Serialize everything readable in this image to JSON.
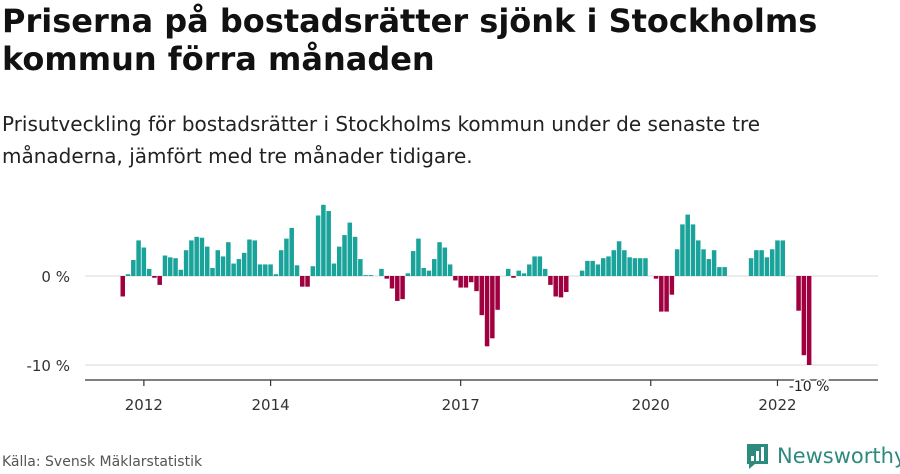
{
  "title": "Priserna på bostadsrätter sjönk i Stockholms kommun förra månaden",
  "subtitle": "Prisutveckling för bostadsrätter i Stockholms kommun under de senaste tre månaderna, jämfört med tre månader tidigare.",
  "source": "Källa: Svensk Mäklarstatistik",
  "brand": "Newsworthy",
  "colors": {
    "positive": "#1aa39a",
    "negative": "#a0003f",
    "brand": "#2d8a7e"
  },
  "chart_data": {
    "type": "bar",
    "start_month": "2011-09",
    "ylim": [
      -10.5,
      9
    ],
    "yticks": [
      0,
      -10
    ],
    "ytick_labels": [
      "0 %",
      "-10 %"
    ],
    "x_ticks": [
      "2012",
      "2014",
      "2017",
      "2020",
      "2022"
    ],
    "last_label": "-10 %",
    "values": [
      -2.3,
      0.2,
      1.8,
      4.0,
      3.2,
      0.8,
      -0.2,
      -1.0,
      2.3,
      2.1,
      2.0,
      0.7,
      2.9,
      4.0,
      4.4,
      4.3,
      3.3,
      0.9,
      2.9,
      2.2,
      3.8,
      1.4,
      1.9,
      2.6,
      4.1,
      4.0,
      1.3,
      1.3,
      1.3,
      0.2,
      2.9,
      4.2,
      5.4,
      1.2,
      -1.2,
      -1.2,
      1.1,
      6.8,
      8.0,
      7.3,
      1.4,
      3.3,
      4.6,
      6.0,
      4.4,
      1.9,
      0.1,
      0.1,
      0,
      0.8,
      -0.3,
      -1.4,
      -2.8,
      -2.6,
      0.3,
      2.8,
      4.2,
      0.9,
      0.6,
      1.9,
      3.8,
      3.2,
      1.3,
      -0.5,
      -1.3,
      -1.3,
      -0.7,
      -1.7,
      -4.4,
      -7.9,
      -7.0,
      -3.8,
      0,
      0.8,
      -0.2,
      0.6,
      0.3,
      1.3,
      2.2,
      2.2,
      0.8,
      -1.0,
      -2.3,
      -2.4,
      -1.8,
      0,
      0,
      0.6,
      1.7,
      1.7,
      1.3,
      2.0,
      2.2,
      2.9,
      3.9,
      2.9,
      2.1,
      2.0,
      2.0,
      2.0,
      0,
      -0.3,
      -4.0,
      -4.0,
      -2.1,
      3.0,
      5.8,
      6.9,
      5.8,
      4.0,
      3.0,
      1.9,
      2.9,
      1.0,
      1.0,
      0,
      0,
      0,
      0,
      2.0,
      2.9,
      2.9,
      2.1,
      3.0,
      4.0,
      4.0,
      0,
      0,
      -3.9,
      -8.9,
      -10.0
    ]
  }
}
